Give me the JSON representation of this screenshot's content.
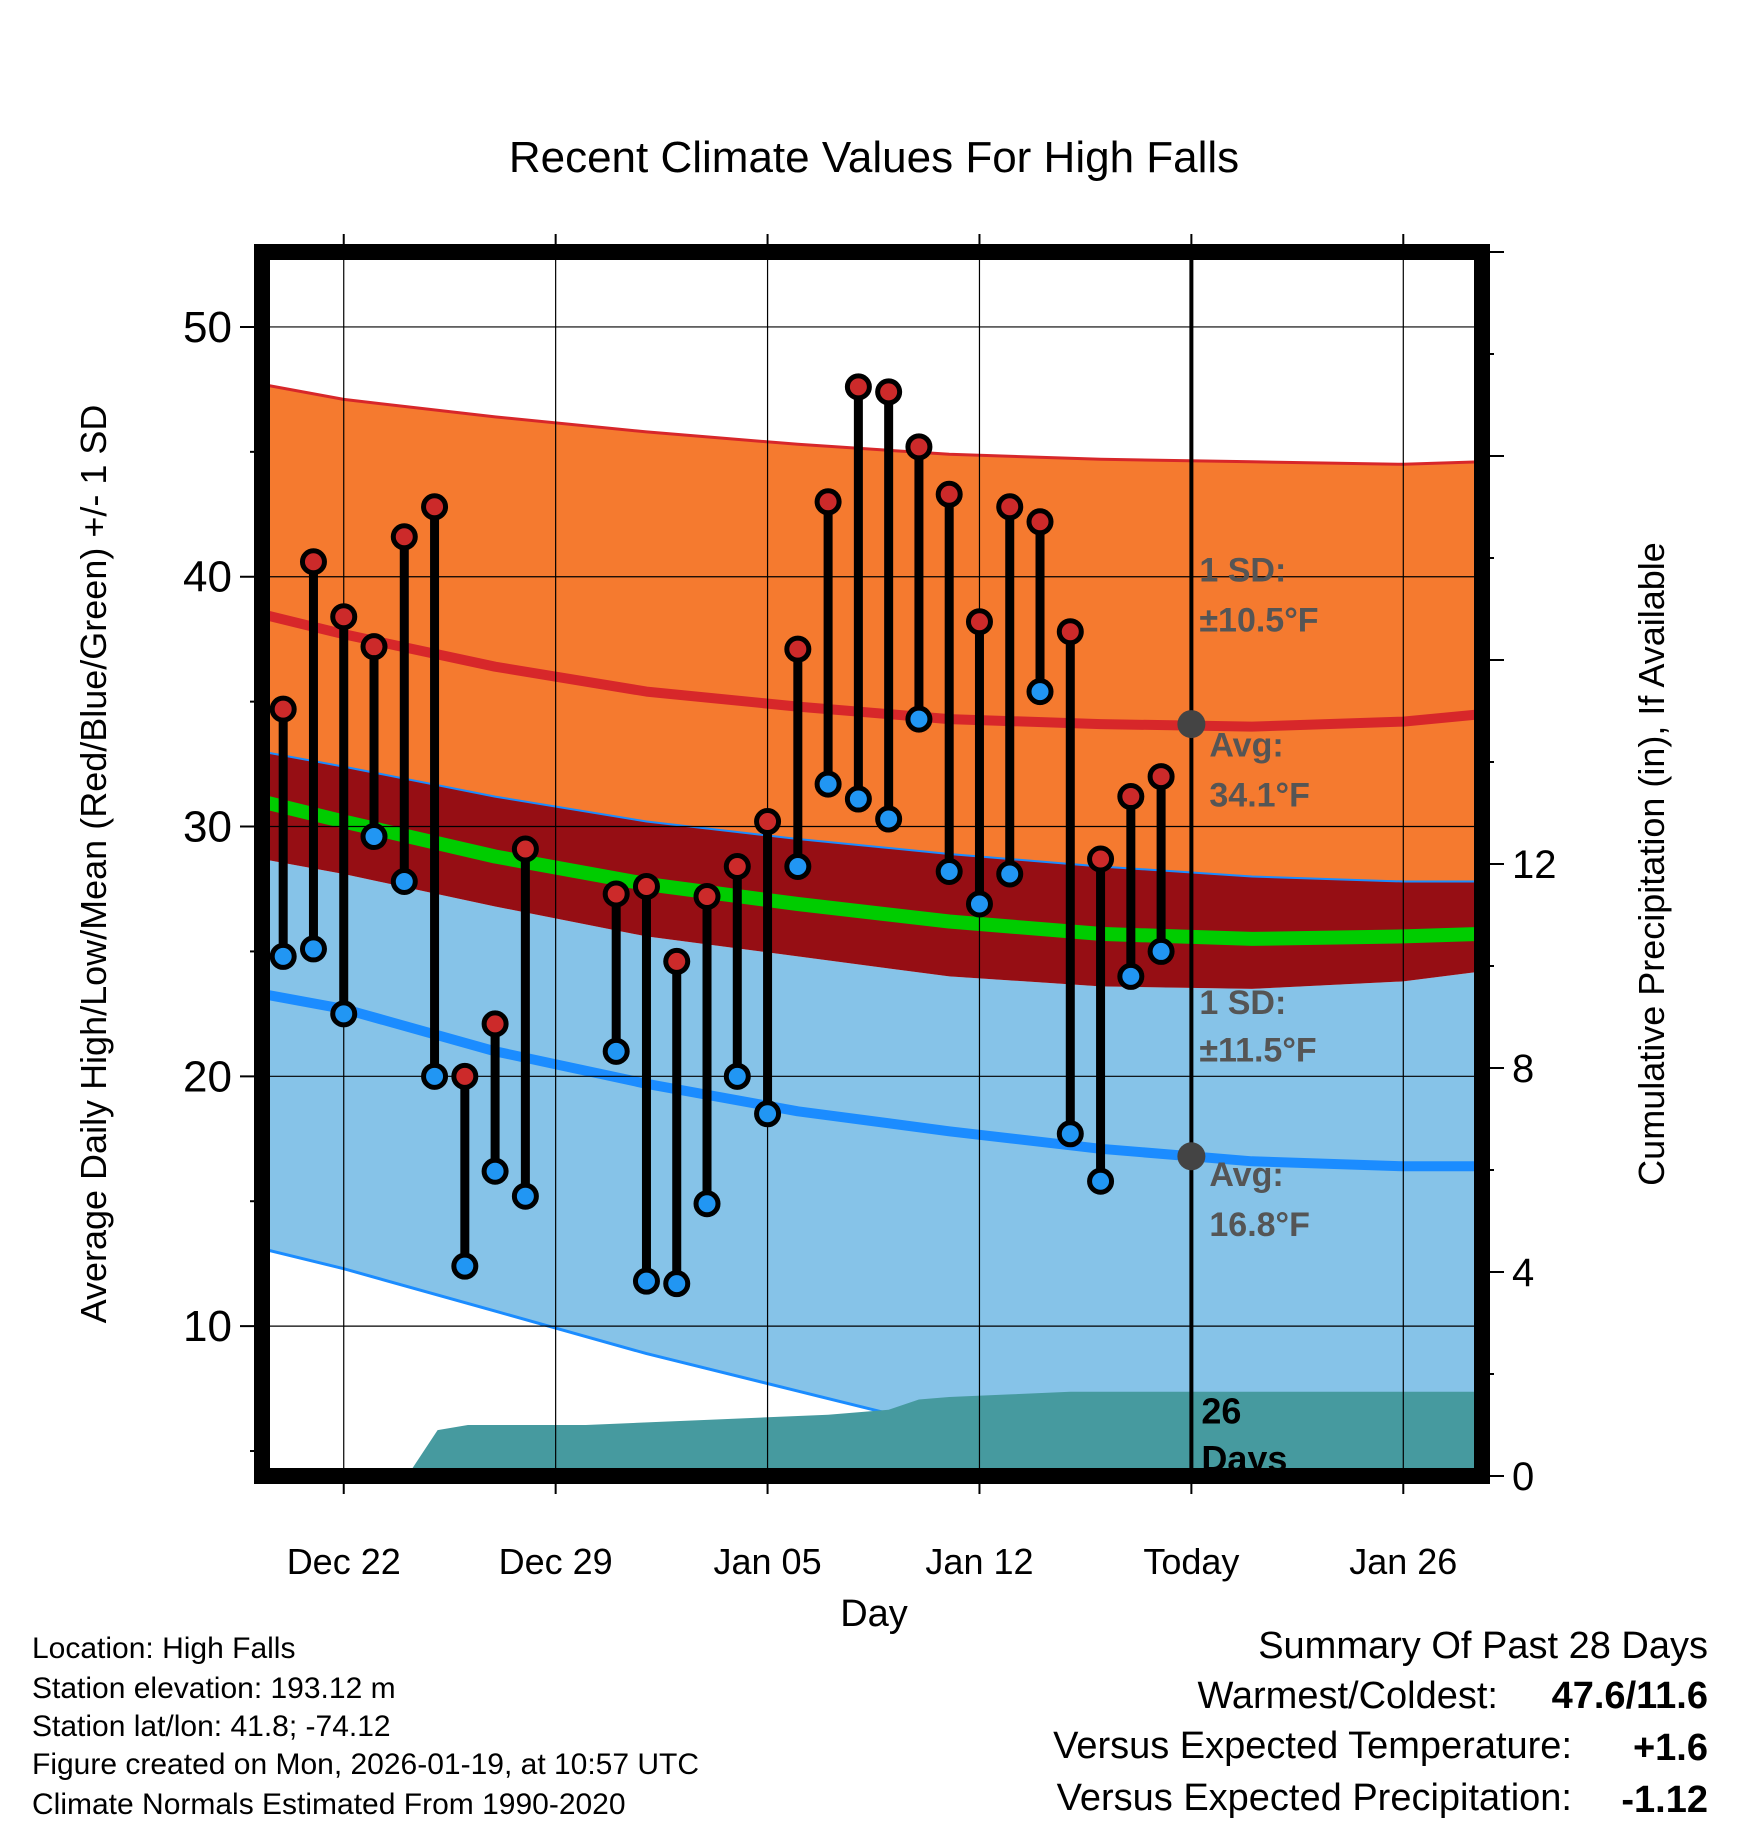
{
  "chart_data": {
    "type": "line",
    "title": "Recent Climate Values For High Falls",
    "xlabel": "Day",
    "ylabel": "Average Daily High/Low/Mean (Red/Blue/Green) +/- 1 SD",
    "ylabel_right": "Cumulative Precipitation (in), If Available",
    "ylim": [
      4,
      53
    ],
    "ylim_right": [
      0,
      24
    ],
    "yticks": [
      10,
      20,
      30,
      40,
      50
    ],
    "yticks_right": [
      0,
      4,
      8,
      12
    ],
    "x_tick_labels": [
      {
        "day": 0,
        "label": "Dec 22"
      },
      {
        "day": 7,
        "label": "Dec 29"
      },
      {
        "day": 14,
        "label": "Jan 05"
      },
      {
        "day": 21,
        "label": "Jan 12"
      },
      {
        "day": 28,
        "label": "Today"
      },
      {
        "day": 35,
        "label": "Jan 26"
      }
    ],
    "x_range": [
      -2.7,
      37.6
    ],
    "today_day": 28,
    "observed": {
      "days": [
        -2,
        -1,
        0,
        1,
        2,
        3,
        4,
        5,
        6,
        9,
        10,
        11,
        12,
        13,
        14,
        15,
        16,
        17,
        18,
        19,
        20,
        21,
        22,
        23,
        24,
        25,
        26,
        27
      ],
      "highs": [
        34.7,
        40.6,
        38.4,
        37.2,
        41.6,
        42.8,
        20.0,
        22.1,
        29.1,
        27.3,
        27.6,
        24.6,
        27.2,
        28.4,
        30.2,
        37.1,
        43.0,
        47.6,
        47.4,
        45.2,
        43.3,
        38.2,
        42.8,
        42.2,
        37.8,
        28.7,
        31.2,
        32.0
      ],
      "lows": [
        24.8,
        25.1,
        22.5,
        29.6,
        27.8,
        20.0,
        12.4,
        16.2,
        15.2,
        21.0,
        11.8,
        11.7,
        14.9,
        20.0,
        18.5,
        28.4,
        31.7,
        31.1,
        30.3,
        34.3,
        28.2,
        26.9,
        28.1,
        35.4,
        17.7,
        15.8,
        24.0,
        25.0
      ]
    },
    "normals": {
      "days": [
        -2.7,
        0,
        5,
        10,
        15,
        20,
        25,
        30,
        35,
        37.6
      ],
      "high_avg": [
        38.5,
        37.7,
        36.4,
        35.4,
        34.8,
        34.3,
        34.1,
        34.0,
        34.2,
        34.5
      ],
      "high_upper": [
        47.7,
        47.1,
        46.4,
        45.8,
        45.3,
        44.9,
        44.7,
        44.6,
        44.5,
        44.6
      ],
      "high_lower": [
        33.0,
        32.4,
        31.2,
        30.2,
        29.5,
        28.9,
        28.4,
        28.0,
        27.8,
        27.8
      ],
      "mean": [
        31.0,
        30.2,
        28.8,
        27.7,
        26.9,
        26.2,
        25.7,
        25.5,
        25.6,
        25.7
      ],
      "low_upper": [
        28.7,
        28.1,
        26.8,
        25.6,
        24.8,
        24.0,
        23.6,
        23.5,
        23.8,
        24.2
      ],
      "low_avg": [
        23.3,
        22.7,
        21.0,
        19.7,
        18.6,
        17.8,
        17.1,
        16.6,
        16.4,
        16.4
      ],
      "low_lower": [
        13.1,
        12.3,
        10.6,
        8.9,
        7.4,
        5.9,
        4.9,
        4.2,
        3.8,
        3.8
      ]
    },
    "precipitation": {
      "days": [
        -2.7,
        0,
        2.1,
        3.1,
        4.1,
        5.0,
        8,
        12,
        14,
        16,
        18,
        19,
        20,
        22,
        24,
        37.6
      ],
      "cumulative": [
        0,
        0,
        0,
        0.9,
        1.0,
        1.0,
        1.0,
        1.1,
        1.15,
        1.2,
        1.3,
        1.5,
        1.55,
        1.6,
        1.65,
        1.65
      ]
    },
    "annotations": {
      "high_sd": "1 SD:",
      "high_sd_value": "±10.5°F",
      "high_avg_label": "Avg:",
      "high_avg_value": "34.1°F",
      "low_sd": "1 SD:",
      "low_sd_value": "±11.5°F",
      "low_avg_label": "Avg:",
      "low_avg_value": "16.8°F",
      "precip_days_count": "26",
      "precip_days_word": "Days"
    },
    "colors": {
      "high_band": "#f57a2f",
      "high_line": "#d7272a",
      "overlap_band": "#960e14",
      "mean_line": "#00cc00",
      "low_band": "#86c3e8",
      "low_line": "#1b8cff",
      "precip": "#469a9f",
      "marker_high": "#cc2a2a",
      "marker_low": "#2196f3",
      "marker_avg": "#444444"
    }
  },
  "footer": {
    "location": "Location: High Falls",
    "elevation": "Station elevation: 193.12 m",
    "latlon": "Station lat/lon: 41.8; -74.12",
    "created": "Figure created on Mon, 2026-01-19, at 10:57 UTC",
    "normals": "Climate Normals Estimated From 1990-2020"
  },
  "summary": {
    "title": "Summary Of Past 28 Days",
    "warmest_label": "Warmest/Coldest:",
    "warmest_value": "47.6/11.6",
    "temp_label": "Versus Expected Temperature:",
    "temp_value": "+1.6",
    "temp_color": "#d42a2a",
    "precip_label": "Versus Expected Precipitation:",
    "precip_value": "-1.12",
    "precip_color": "#a0522d"
  }
}
